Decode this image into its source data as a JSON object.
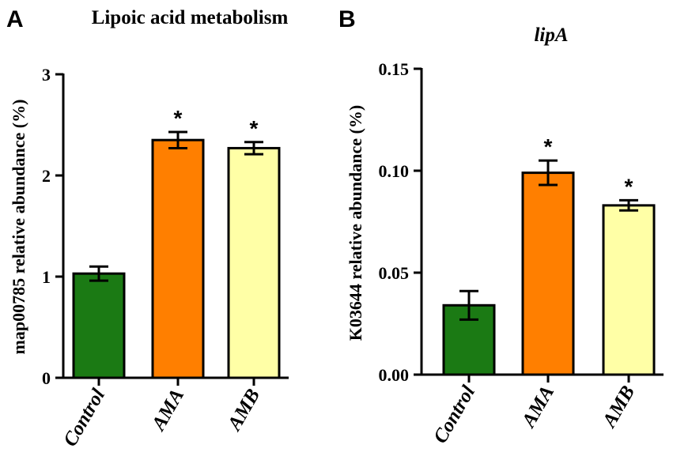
{
  "chart_data": [
    {
      "panel": "A",
      "type": "bar",
      "title": "Lipoic acid metabolism",
      "title_italic": false,
      "ylabel": "map00785 relative abundance (%)",
      "xlabel": "",
      "ylim": [
        0,
        3
      ],
      "yticks": [
        "0",
        "1",
        "2",
        "3"
      ],
      "yticks_values": [
        0,
        1,
        2,
        3
      ],
      "categories": [
        "Control",
        "AMA",
        "AMB"
      ],
      "values": [
        1.03,
        2.35,
        2.27
      ],
      "errors": [
        0.07,
        0.08,
        0.06
      ],
      "significance": [
        "",
        "*",
        "*"
      ],
      "colors": [
        "#1b7a14",
        "#ff7f00",
        "#ffffa6"
      ]
    },
    {
      "panel": "B",
      "type": "bar",
      "title": "lipA",
      "title_italic": true,
      "ylabel": "K03644 relative abundance (%)",
      "xlabel": "",
      "ylim": [
        0,
        0.15
      ],
      "yticks": [
        "0.00",
        "0.05",
        "0.10",
        "0.15"
      ],
      "yticks_values": [
        0,
        0.05,
        0.1,
        0.15
      ],
      "categories": [
        "Control",
        "AMA",
        "AMB"
      ],
      "values": [
        0.034,
        0.099,
        0.083
      ],
      "errors": [
        0.007,
        0.006,
        0.0025
      ],
      "significance": [
        "",
        "*",
        "*"
      ],
      "colors": [
        "#1b7a14",
        "#ff7f00",
        "#ffffa6"
      ]
    }
  ]
}
